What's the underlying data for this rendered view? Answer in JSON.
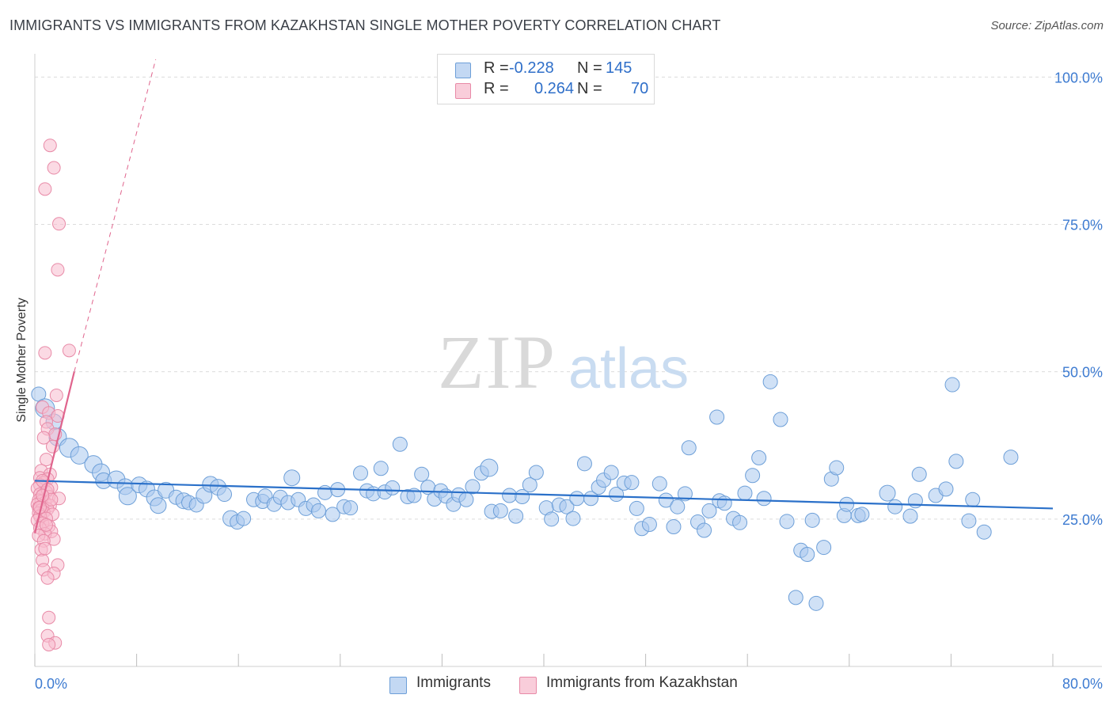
{
  "title": "IMMIGRANTS VS IMMIGRANTS FROM KAZAKHSTAN SINGLE MOTHER POVERTY CORRELATION CHART",
  "source": "Source: ZipAtlas.com",
  "watermark": {
    "zip": "ZIP",
    "atlas": "atlas"
  },
  "colors": {
    "blue_fill": "#a9c8ef",
    "blue_stroke": "#6d9fd8",
    "blue_line": "#2a70c9",
    "pink_fill": "#f7bccd",
    "pink_stroke": "#e88aa7",
    "pink_line": "#e0648d",
    "axis_text": "#3d7bd1",
    "grid": "#dcdcdc"
  },
  "legend_top": {
    "rows": [
      {
        "series": "Immigrants",
        "r_label": "R =",
        "r_value": "-0.228",
        "n_label": "N =",
        "n_value": "145"
      },
      {
        "series": "Immigrants from Kazakhstan",
        "r_label": "R =",
        "r_value": "0.264",
        "n_label": "N =",
        "n_value": "70"
      }
    ]
  },
  "legend_bottom": {
    "items": [
      "Immigrants",
      "Immigrants from Kazakhstan"
    ]
  },
  "chart_data": {
    "type": "scatter",
    "title": "IMMIGRANTS VS IMMIGRANTS FROM KAZAKHSTAN SINGLE MOTHER POVERTY CORRELATION CHART",
    "xlabel": "",
    "ylabel": "Single Mother Poverty",
    "xlim": [
      0,
      80
    ],
    "ylim": [
      0,
      103
    ],
    "x_tick_labels": [
      {
        "value": 0,
        "label": "0.0%"
      },
      {
        "value": 80,
        "label": "80.0%"
      }
    ],
    "y_tick_labels": [
      {
        "value": 25,
        "label": "25.0%"
      },
      {
        "value": 50,
        "label": "50.0%"
      },
      {
        "value": 75,
        "label": "75.0%"
      },
      {
        "value": 100,
        "label": "100.0%"
      }
    ],
    "grid": true,
    "series": [
      {
        "name": "Immigrants",
        "color": "#a9c8ef",
        "r": -0.228,
        "n": 145,
        "trend": {
          "x0": 0,
          "y0": 31.5,
          "x1": 80,
          "y1": 26.8
        },
        "points": [
          [
            0.3,
            46.2,
            9
          ],
          [
            0.8,
            43.8,
            12
          ],
          [
            1.5,
            41.5,
            10
          ],
          [
            1.8,
            38.9,
            11
          ],
          [
            2.7,
            37.1,
            12
          ],
          [
            3.5,
            35.8,
            11
          ],
          [
            4.6,
            34.3,
            11
          ],
          [
            5.2,
            32.9,
            11
          ],
          [
            5.4,
            31.5,
            10
          ],
          [
            6.4,
            31.7,
            11
          ],
          [
            7.1,
            30.5,
            10
          ],
          [
            7.3,
            28.9,
            11
          ],
          [
            8.2,
            30.8,
            10
          ],
          [
            8.8,
            30.1,
            10
          ],
          [
            9.4,
            28.6,
            10
          ],
          [
            9.7,
            27.3,
            10
          ],
          [
            10.3,
            29.9,
            10
          ],
          [
            11.1,
            28.7,
            9
          ],
          [
            11.7,
            28.1,
            10
          ],
          [
            12.1,
            27.8,
            9
          ],
          [
            12.7,
            27.4,
            9
          ],
          [
            13.3,
            29.0,
            10
          ],
          [
            13.8,
            30.9,
            10
          ],
          [
            14.4,
            30.4,
            10
          ],
          [
            14.9,
            29.2,
            9
          ],
          [
            15.4,
            25.1,
            10
          ],
          [
            15.9,
            24.5,
            9
          ],
          [
            16.4,
            25.1,
            9
          ],
          [
            17.2,
            28.3,
            9
          ],
          [
            17.9,
            28.0,
            9
          ],
          [
            18.1,
            28.9,
            9
          ],
          [
            18.8,
            27.5,
            9
          ],
          [
            19.3,
            28.7,
            9
          ],
          [
            19.9,
            27.8,
            9
          ],
          [
            20.2,
            32.0,
            10
          ],
          [
            20.7,
            28.3,
            9
          ],
          [
            21.3,
            26.8,
            9
          ],
          [
            21.9,
            27.4,
            9
          ],
          [
            22.3,
            26.4,
            9
          ],
          [
            22.8,
            29.5,
            9
          ],
          [
            23.4,
            25.8,
            9
          ],
          [
            23.8,
            30.0,
            9
          ],
          [
            24.3,
            27.1,
            9
          ],
          [
            24.8,
            26.9,
            9
          ],
          [
            25.6,
            32.8,
            9
          ],
          [
            26.1,
            29.8,
            9
          ],
          [
            26.6,
            29.3,
            9
          ],
          [
            27.2,
            33.6,
            9
          ],
          [
            27.5,
            29.6,
            9
          ],
          [
            28.1,
            30.3,
            9
          ],
          [
            28.7,
            37.7,
            9
          ],
          [
            29.3,
            28.8,
            9
          ],
          [
            29.8,
            29.0,
            9
          ],
          [
            30.4,
            32.6,
            9
          ],
          [
            30.9,
            30.4,
            9
          ],
          [
            31.4,
            28.4,
            9
          ],
          [
            31.9,
            29.8,
            9
          ],
          [
            32.3,
            28.9,
            9
          ],
          [
            32.9,
            27.5,
            9
          ],
          [
            33.3,
            29.1,
            9
          ],
          [
            33.9,
            28.3,
            9
          ],
          [
            34.4,
            30.5,
            9
          ],
          [
            35.1,
            32.8,
            9
          ],
          [
            35.7,
            33.7,
            11
          ],
          [
            35.9,
            26.3,
            9
          ],
          [
            36.6,
            26.4,
            9
          ],
          [
            37.3,
            29.0,
            9
          ],
          [
            37.8,
            25.5,
            9
          ],
          [
            38.3,
            28.8,
            9
          ],
          [
            38.9,
            30.8,
            9
          ],
          [
            39.4,
            32.9,
            9
          ],
          [
            40.2,
            26.9,
            9
          ],
          [
            40.6,
            25.0,
            9
          ],
          [
            41.2,
            27.4,
            9
          ],
          [
            41.8,
            27.1,
            9
          ],
          [
            42.3,
            25.1,
            9
          ],
          [
            42.6,
            28.5,
            9
          ],
          [
            43.2,
            34.4,
            9
          ],
          [
            43.7,
            28.5,
            9
          ],
          [
            44.3,
            30.4,
            9
          ],
          [
            44.7,
            31.6,
            9
          ],
          [
            45.3,
            32.9,
            9
          ],
          [
            45.7,
            29.2,
            9
          ],
          [
            46.3,
            31.1,
            9
          ],
          [
            46.9,
            31.2,
            9
          ],
          [
            47.3,
            26.8,
            9
          ],
          [
            47.7,
            23.4,
            9
          ],
          [
            48.3,
            24.1,
            9
          ],
          [
            49.1,
            31.0,
            9
          ],
          [
            49.6,
            28.2,
            9
          ],
          [
            50.2,
            23.7,
            9
          ],
          [
            50.5,
            27.1,
            9
          ],
          [
            51.1,
            29.3,
            9
          ],
          [
            51.4,
            37.1,
            9
          ],
          [
            52.1,
            24.5,
            9
          ],
          [
            52.6,
            23.1,
            9
          ],
          [
            53.0,
            26.4,
            9
          ],
          [
            53.6,
            42.3,
            9
          ],
          [
            53.8,
            28.1,
            9
          ],
          [
            54.2,
            27.7,
            9
          ],
          [
            54.9,
            25.1,
            9
          ],
          [
            55.4,
            24.4,
            9
          ],
          [
            55.8,
            29.4,
            9
          ],
          [
            56.4,
            32.4,
            9
          ],
          [
            56.9,
            35.4,
            9
          ],
          [
            57.3,
            28.5,
            9
          ],
          [
            57.8,
            48.3,
            9
          ],
          [
            58.6,
            41.9,
            9
          ],
          [
            59.1,
            24.6,
            9
          ],
          [
            60.2,
            19.7,
            9
          ],
          [
            60.7,
            19.0,
            9
          ],
          [
            61.1,
            24.8,
            9
          ],
          [
            61.4,
            10.7,
            9
          ],
          [
            62.0,
            20.2,
            9
          ],
          [
            62.6,
            31.8,
            9
          ],
          [
            63.0,
            33.7,
            9
          ],
          [
            63.6,
            25.6,
            9
          ],
          [
            63.8,
            27.5,
            9
          ],
          [
            64.7,
            25.6,
            9
          ],
          [
            65.0,
            25.8,
            9
          ],
          [
            59.8,
            11.7,
            9
          ],
          [
            67.0,
            29.4,
            10
          ],
          [
            67.6,
            27.1,
            9
          ],
          [
            68.8,
            25.5,
            9
          ],
          [
            69.2,
            28.1,
            9
          ],
          [
            69.5,
            32.6,
            9
          ],
          [
            70.8,
            29.0,
            9
          ],
          [
            71.6,
            30.1,
            9
          ],
          [
            72.1,
            47.8,
            9
          ],
          [
            72.4,
            34.8,
            9
          ],
          [
            73.4,
            24.7,
            9
          ],
          [
            73.7,
            28.3,
            9
          ],
          [
            74.6,
            22.8,
            9
          ],
          [
            76.7,
            35.5,
            9
          ]
        ]
      },
      {
        "name": "Immigrants from Kazakhstan",
        "color": "#f7bccd",
        "r": 0.264,
        "n": 70,
        "trend": {
          "x0": 0,
          "y0": 22.6,
          "x1": 3.1,
          "y1": 50.0
        },
        "trend_extension": {
          "x0": 3.1,
          "y0": 50.0,
          "x1": 9.5,
          "y1": 103
        },
        "points": [
          [
            1.2,
            88.4,
            8
          ],
          [
            1.5,
            84.6,
            8
          ],
          [
            0.8,
            81.0,
            8
          ],
          [
            1.9,
            75.1,
            8
          ],
          [
            1.8,
            67.3,
            8
          ],
          [
            2.7,
            53.6,
            8
          ],
          [
            0.8,
            53.2,
            8
          ],
          [
            1.7,
            46.0,
            8
          ],
          [
            0.6,
            44.0,
            8
          ],
          [
            1.1,
            43.0,
            8
          ],
          [
            1.8,
            42.5,
            8
          ],
          [
            0.9,
            41.5,
            8
          ],
          [
            1.0,
            40.3,
            8
          ],
          [
            1.6,
            39.4,
            8
          ],
          [
            0.7,
            38.8,
            8
          ],
          [
            1.4,
            37.3,
            8
          ],
          [
            0.9,
            35.1,
            8
          ],
          [
            0.5,
            33.2,
            8
          ],
          [
            1.2,
            32.6,
            8
          ],
          [
            0.4,
            32.0,
            8
          ],
          [
            1.0,
            31.8,
            8
          ],
          [
            0.7,
            31.2,
            8
          ],
          [
            0.4,
            30.8,
            8
          ],
          [
            1.3,
            30.4,
            8
          ],
          [
            0.2,
            30.2,
            8
          ],
          [
            0.9,
            29.6,
            8
          ],
          [
            0.4,
            29.2,
            8
          ],
          [
            0.6,
            28.9,
            8
          ],
          [
            1.1,
            28.8,
            8
          ],
          [
            1.9,
            28.5,
            8
          ],
          [
            0.3,
            28.2,
            8
          ],
          [
            0.5,
            28.0,
            8
          ],
          [
            0.8,
            27.8,
            8
          ],
          [
            0.2,
            27.5,
            8
          ],
          [
            1.2,
            27.3,
            8
          ],
          [
            0.6,
            27.2,
            8
          ],
          [
            0.3,
            26.9,
            8
          ],
          [
            1.0,
            26.7,
            8
          ],
          [
            0.5,
            26.5,
            8
          ],
          [
            0.7,
            26.2,
            8
          ],
          [
            0.3,
            26.0,
            8
          ],
          [
            1.4,
            25.8,
            8
          ],
          [
            0.4,
            25.5,
            8
          ],
          [
            0.9,
            25.1,
            8
          ],
          [
            0.2,
            24.8,
            8
          ],
          [
            0.6,
            24.3,
            8
          ],
          [
            1.1,
            23.8,
            8
          ],
          [
            0.4,
            23.5,
            8
          ],
          [
            1.3,
            22.9,
            8
          ],
          [
            0.8,
            22.5,
            8
          ],
          [
            0.3,
            22.2,
            8
          ],
          [
            1.5,
            21.6,
            8
          ],
          [
            0.7,
            21.3,
            8
          ],
          [
            0.5,
            19.8,
            8
          ],
          [
            0.6,
            18.0,
            8
          ],
          [
            1.8,
            17.2,
            8
          ],
          [
            0.7,
            16.4,
            8
          ],
          [
            1.5,
            15.8,
            8
          ],
          [
            1.0,
            15.0,
            8
          ],
          [
            1.1,
            8.3,
            8
          ],
          [
            1.0,
            5.2,
            8
          ],
          [
            1.6,
            4.0,
            8
          ],
          [
            1.1,
            3.7,
            8
          ],
          [
            0.6,
            31.5,
            8
          ],
          [
            1.0,
            30.0,
            8
          ],
          [
            0.4,
            27.0,
            8
          ],
          [
            0.9,
            24.0,
            8
          ],
          [
            1.3,
            28.3,
            8
          ],
          [
            0.6,
            29.0,
            8
          ],
          [
            0.8,
            20.0,
            8
          ]
        ]
      }
    ]
  }
}
